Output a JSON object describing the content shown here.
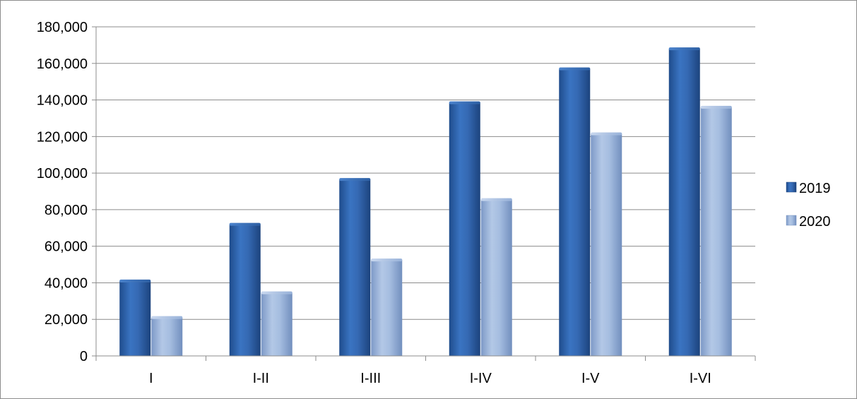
{
  "chart_data": {
    "type": "bar",
    "title": "",
    "xlabel": "",
    "ylabel": "",
    "categories": [
      "I",
      "I-II",
      "I-III",
      "I-IV",
      "I-V",
      "I-VI"
    ],
    "series": [
      {
        "name": "2019",
        "color": "#2e62a8",
        "values": [
          41000,
          72000,
          96500,
          138500,
          157000,
          168000
        ]
      },
      {
        "name": "2020",
        "color": "#93aed6",
        "values": [
          21000,
          34500,
          52500,
          85500,
          121500,
          136000
        ]
      }
    ],
    "ylim": [
      0,
      180000
    ],
    "yticks": [
      0,
      20000,
      40000,
      60000,
      80000,
      100000,
      120000,
      140000,
      160000,
      180000
    ],
    "ytick_labels": [
      "0",
      "20,000",
      "40,000",
      "60,000",
      "80,000",
      "100,000",
      "120,000",
      "140,000",
      "160,000",
      "180,000"
    ],
    "grid": true,
    "legend_position": "right"
  }
}
